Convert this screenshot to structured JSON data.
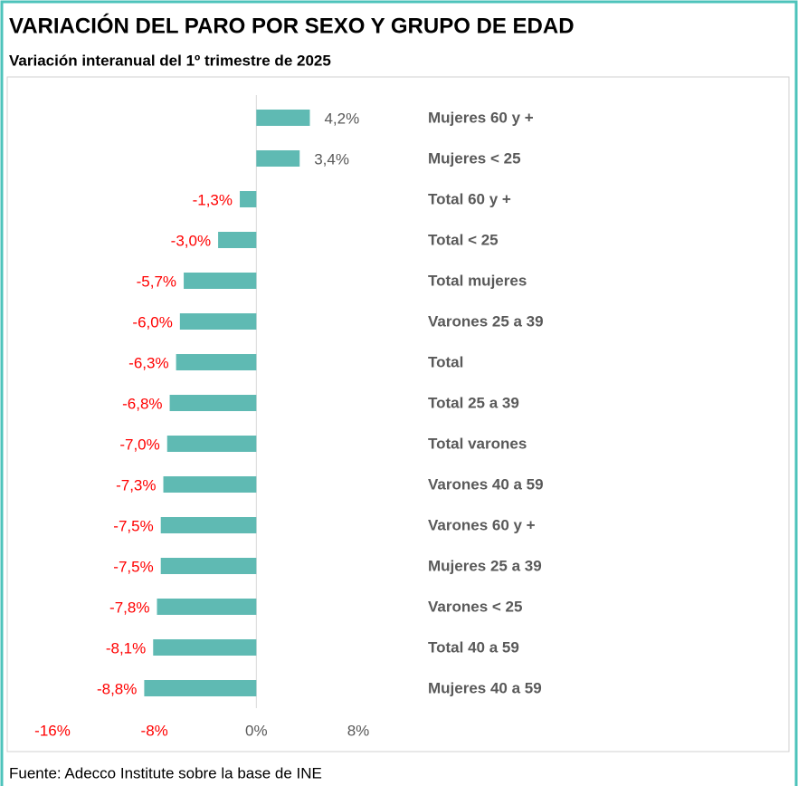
{
  "chart_data": {
    "type": "bar",
    "orientation": "horizontal",
    "title": "VARIACIÓN DEL PARO POR SEXO Y GRUPO DE EDAD",
    "subtitle": "Variación interanual del 1º trimestre de 2025",
    "source": "Fuente: Adecco Institute sobre la base de INE",
    "categories": [
      "Mujeres 60 y +",
      "Mujeres < 25",
      "Total 60 y +",
      "Total < 25",
      "Total mujeres",
      "Varones 25 a 39",
      "Total",
      "Total 25 a 39",
      "Total varones",
      "Varones 40 a 59",
      "Varones 60 y +",
      "Mujeres 25 a 39",
      "Varones < 25",
      "Total 40 a 59",
      "Mujeres 40 a 59"
    ],
    "values": [
      4.2,
      3.4,
      -1.3,
      -3.0,
      -5.7,
      -6.0,
      -6.3,
      -6.8,
      -7.0,
      -7.3,
      -7.5,
      -7.5,
      -7.8,
      -8.1,
      -8.8
    ],
    "value_labels": [
      "4,2%",
      "3,4%",
      "-1,3%",
      "-3,0%",
      "-5,7%",
      "-6,0%",
      "-6,3%",
      "-6,8%",
      "-7,0%",
      "-7,3%",
      "-7,5%",
      "-7,5%",
      "-7,8%",
      "-8,1%",
      "-8,8%"
    ],
    "color": "#5fbab3",
    "xlim": [
      -16,
      8
    ],
    "xticks": [
      {
        "value": -16,
        "label": "-16%"
      },
      {
        "value": -8,
        "label": "-8%"
      },
      {
        "value": 0,
        "label": "0%"
      },
      {
        "value": 8,
        "label": "8%"
      }
    ],
    "grid": false
  }
}
